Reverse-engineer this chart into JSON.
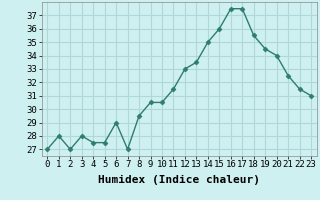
{
  "x": [
    0,
    1,
    2,
    3,
    4,
    5,
    6,
    7,
    8,
    9,
    10,
    11,
    12,
    13,
    14,
    15,
    16,
    17,
    18,
    19,
    20,
    21,
    22,
    23
  ],
  "y": [
    27,
    28,
    27,
    28,
    27.5,
    27.5,
    29,
    27,
    29.5,
    30.5,
    30.5,
    31.5,
    33,
    33.5,
    35,
    36,
    37.5,
    37.5,
    35.5,
    34.5,
    34,
    32.5,
    31.5,
    31
  ],
  "line_color": "#2e7d6e",
  "marker": "D",
  "marker_size": 2.5,
  "bg_color": "#cff0f0",
  "grid_color": "#b0d8d8",
  "xlabel": "Humidex (Indice chaleur)",
  "xlim": [
    -0.5,
    23.5
  ],
  "ylim": [
    26.5,
    38
  ],
  "yticks": [
    27,
    28,
    29,
    30,
    31,
    32,
    33,
    34,
    35,
    36,
    37
  ],
  "xtick_labels": [
    "0",
    "1",
    "2",
    "3",
    "4",
    "5",
    "6",
    "7",
    "8",
    "9",
    "10",
    "11",
    "12",
    "13",
    "14",
    "15",
    "16",
    "17",
    "18",
    "19",
    "20",
    "21",
    "22",
    "23"
  ],
  "tick_fontsize": 6.5,
  "xlabel_fontsize": 8,
  "line_width": 1.0
}
